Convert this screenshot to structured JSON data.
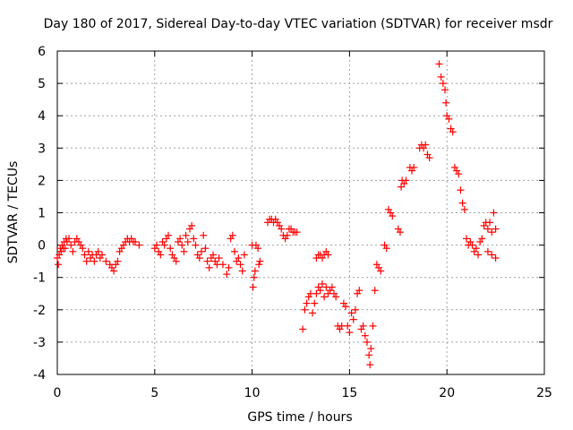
{
  "chart_data": {
    "type": "scatter",
    "title": "Day 180 of 2017, Sidereal Day-to-day VTEC variation (SDTVAR) for receiver msdr",
    "xlabel": "GPS time / hours",
    "ylabel": "SDTVAR / TECUs",
    "xlim": [
      0,
      25
    ],
    "ylim": [
      -4,
      6
    ],
    "x_ticks": [
      0,
      5,
      10,
      15,
      20,
      25
    ],
    "y_ticks": [
      -4,
      -3,
      -2,
      -1,
      0,
      1,
      2,
      3,
      4,
      5,
      6
    ],
    "x_tick_labels": [
      "0",
      "5",
      "10",
      "15",
      "20",
      "25"
    ],
    "y_tick_labels": [
      "-4",
      "-3",
      "-2",
      "-1",
      "0",
      "1",
      "2",
      "3",
      "4",
      "5",
      "6"
    ],
    "grid": true,
    "marker": "+",
    "color": "#ff0000",
    "series": [
      {
        "name": "msdr",
        "points": [
          [
            0.0,
            -0.4
          ],
          [
            0.05,
            -0.6
          ],
          [
            0.1,
            -0.3
          ],
          [
            0.15,
            -0.1
          ],
          [
            0.2,
            -0.2
          ],
          [
            0.25,
            0.0
          ],
          [
            0.3,
            -0.1
          ],
          [
            0.35,
            0.1
          ],
          [
            0.4,
            -0.1
          ],
          [
            0.45,
            0.2
          ],
          [
            0.5,
            0.1
          ],
          [
            0.6,
            0.2
          ],
          [
            0.7,
            0.0
          ],
          [
            0.8,
            -0.2
          ],
          [
            0.9,
            0.1
          ],
          [
            1.0,
            0.2
          ],
          [
            1.1,
            0.1
          ],
          [
            1.2,
            0.0
          ],
          [
            1.3,
            -0.1
          ],
          [
            1.4,
            -0.3
          ],
          [
            1.5,
            -0.5
          ],
          [
            1.6,
            -0.2
          ],
          [
            1.7,
            -0.4
          ],
          [
            1.8,
            -0.3
          ],
          [
            1.9,
            -0.5
          ],
          [
            2.0,
            -0.3
          ],
          [
            2.1,
            -0.2
          ],
          [
            2.2,
            -0.4
          ],
          [
            2.3,
            -0.3
          ],
          [
            2.5,
            -0.5
          ],
          [
            2.7,
            -0.6
          ],
          [
            2.8,
            -0.7
          ],
          [
            2.9,
            -0.8
          ],
          [
            3.0,
            -0.6
          ],
          [
            3.1,
            -0.5
          ],
          [
            3.2,
            -0.2
          ],
          [
            3.3,
            -0.1
          ],
          [
            3.4,
            0.0
          ],
          [
            3.5,
            0.1
          ],
          [
            3.6,
            0.2
          ],
          [
            3.7,
            0.1
          ],
          [
            3.8,
            0.2
          ],
          [
            3.9,
            0.1
          ],
          [
            4.0,
            0.1
          ],
          [
            4.2,
            0.0
          ],
          [
            5.0,
            -0.1
          ],
          [
            5.1,
            0.0
          ],
          [
            5.2,
            -0.2
          ],
          [
            5.3,
            -0.3
          ],
          [
            5.4,
            0.1
          ],
          [
            5.5,
            0.0
          ],
          [
            5.6,
            0.2
          ],
          [
            5.7,
            0.3
          ],
          [
            5.8,
            -0.1
          ],
          [
            5.9,
            -0.3
          ],
          [
            6.0,
            -0.4
          ],
          [
            6.1,
            -0.5
          ],
          [
            6.2,
            0.1
          ],
          [
            6.3,
            0.2
          ],
          [
            6.4,
            0.0
          ],
          [
            6.5,
            -0.2
          ],
          [
            6.6,
            0.3
          ],
          [
            6.7,
            0.1
          ],
          [
            6.8,
            0.5
          ],
          [
            6.9,
            0.6
          ],
          [
            7.0,
            0.2
          ],
          [
            7.1,
            0.0
          ],
          [
            7.2,
            -0.3
          ],
          [
            7.3,
            -0.4
          ],
          [
            7.4,
            -0.2
          ],
          [
            7.5,
            0.3
          ],
          [
            7.6,
            -0.1
          ],
          [
            7.7,
            -0.5
          ],
          [
            7.8,
            -0.7
          ],
          [
            7.9,
            -0.4
          ],
          [
            8.0,
            -0.3
          ],
          [
            8.1,
            -0.5
          ],
          [
            8.2,
            -0.6
          ],
          [
            8.3,
            -0.4
          ],
          [
            8.5,
            -0.6
          ],
          [
            8.7,
            -0.9
          ],
          [
            8.8,
            -0.7
          ],
          [
            8.9,
            0.2
          ],
          [
            9.0,
            0.3
          ],
          [
            9.1,
            -0.2
          ],
          [
            9.2,
            -0.5
          ],
          [
            9.3,
            -0.4
          ],
          [
            9.4,
            -0.6
          ],
          [
            9.5,
            -0.8
          ],
          [
            9.6,
            -0.3
          ],
          [
            10.0,
            0.0
          ],
          [
            10.05,
            -1.3
          ],
          [
            10.1,
            -1.0
          ],
          [
            10.15,
            -0.8
          ],
          [
            10.2,
            0.0
          ],
          [
            10.3,
            -0.1
          ],
          [
            10.35,
            -0.6
          ],
          [
            10.4,
            -0.5
          ],
          [
            10.8,
            0.7
          ],
          [
            10.9,
            0.8
          ],
          [
            11.0,
            0.8
          ],
          [
            11.1,
            0.7
          ],
          [
            11.2,
            0.8
          ],
          [
            11.3,
            0.7
          ],
          [
            11.4,
            0.6
          ],
          [
            11.5,
            0.5
          ],
          [
            11.6,
            0.3
          ],
          [
            11.7,
            0.2
          ],
          [
            11.8,
            0.3
          ],
          [
            11.9,
            0.5
          ],
          [
            12.0,
            0.5
          ],
          [
            12.1,
            0.4
          ],
          [
            12.2,
            0.4
          ],
          [
            12.3,
            0.4
          ],
          [
            12.6,
            -2.6
          ],
          [
            12.7,
            -2.0
          ],
          [
            12.8,
            -1.8
          ],
          [
            12.9,
            -1.6
          ],
          [
            13.0,
            -1.5
          ],
          [
            13.1,
            -2.1
          ],
          [
            13.2,
            -1.8
          ],
          [
            13.3,
            -1.5
          ],
          [
            13.4,
            -1.3
          ],
          [
            13.5,
            -1.4
          ],
          [
            13.6,
            -1.2
          ],
          [
            13.7,
            -1.6
          ],
          [
            13.8,
            -1.3
          ],
          [
            13.9,
            -1.5
          ],
          [
            14.0,
            -1.4
          ],
          [
            14.1,
            -1.3
          ],
          [
            14.2,
            -1.5
          ],
          [
            14.3,
            -1.6
          ],
          [
            13.3,
            -0.4
          ],
          [
            13.4,
            -0.3
          ],
          [
            13.5,
            -0.3
          ],
          [
            13.6,
            -0.4
          ],
          [
            13.7,
            -0.3
          ],
          [
            13.8,
            -0.2
          ],
          [
            13.9,
            -0.3
          ],
          [
            14.4,
            -2.5
          ],
          [
            14.5,
            -2.6
          ],
          [
            14.6,
            -2.5
          ],
          [
            14.7,
            -1.8
          ],
          [
            14.8,
            -1.9
          ],
          [
            14.9,
            -2.5
          ],
          [
            15.0,
            -2.7
          ],
          [
            15.1,
            -2.1
          ],
          [
            15.2,
            -2.3
          ],
          [
            15.3,
            -2.0
          ],
          [
            15.4,
            -1.5
          ],
          [
            15.5,
            -1.4
          ],
          [
            15.6,
            -2.6
          ],
          [
            15.7,
            -2.5
          ],
          [
            15.8,
            -2.8
          ],
          [
            15.9,
            -3.0
          ],
          [
            16.0,
            -3.4
          ],
          [
            16.05,
            -3.7
          ],
          [
            16.1,
            -3.2
          ],
          [
            16.2,
            -2.5
          ],
          [
            16.3,
            -1.4
          ],
          [
            16.4,
            -0.6
          ],
          [
            16.5,
            -0.7
          ],
          [
            16.6,
            -0.8
          ],
          [
            16.8,
            0.0
          ],
          [
            16.9,
            -0.1
          ],
          [
            17.0,
            1.1
          ],
          [
            17.1,
            1.0
          ],
          [
            17.2,
            0.9
          ],
          [
            17.5,
            0.5
          ],
          [
            17.6,
            0.4
          ],
          [
            17.65,
            1.8
          ],
          [
            17.7,
            2.0
          ],
          [
            17.8,
            1.9
          ],
          [
            17.9,
            2.0
          ],
          [
            18.1,
            2.4
          ],
          [
            18.2,
            2.3
          ],
          [
            18.3,
            2.4
          ],
          [
            18.6,
            3.0
          ],
          [
            18.7,
            3.1
          ],
          [
            18.8,
            3.0
          ],
          [
            18.9,
            3.1
          ],
          [
            19.0,
            2.8
          ],
          [
            19.1,
            2.7
          ],
          [
            19.6,
            5.6
          ],
          [
            19.7,
            5.2
          ],
          [
            19.8,
            5.0
          ],
          [
            19.9,
            4.8
          ],
          [
            19.95,
            4.4
          ],
          [
            20.0,
            4.0
          ],
          [
            20.1,
            3.9
          ],
          [
            20.2,
            3.6
          ],
          [
            20.3,
            3.5
          ],
          [
            20.4,
            2.4
          ],
          [
            20.5,
            2.3
          ],
          [
            20.6,
            2.2
          ],
          [
            20.7,
            1.7
          ],
          [
            20.8,
            1.3
          ],
          [
            20.9,
            1.1
          ],
          [
            21.0,
            0.2
          ],
          [
            21.1,
            0.0
          ],
          [
            21.2,
            0.1
          ],
          [
            21.3,
            0.0
          ],
          [
            21.4,
            -0.2
          ],
          [
            21.5,
            -0.1
          ],
          [
            21.6,
            -0.3
          ],
          [
            21.7,
            0.1
          ],
          [
            21.8,
            0.2
          ],
          [
            21.9,
            0.6
          ],
          [
            22.0,
            0.7
          ],
          [
            22.1,
            0.5
          ],
          [
            22.2,
            0.7
          ],
          [
            22.3,
            0.4
          ],
          [
            22.4,
            1.0
          ],
          [
            22.5,
            0.5
          ],
          [
            22.1,
            -0.2
          ],
          [
            22.3,
            -0.3
          ],
          [
            22.5,
            -0.4
          ]
        ]
      }
    ]
  }
}
